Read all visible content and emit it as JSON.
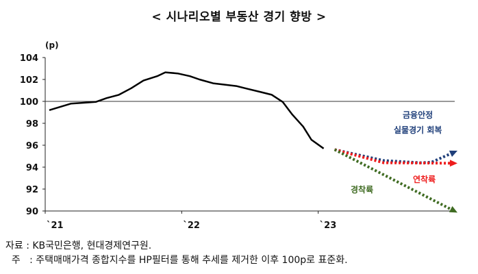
{
  "chart_data": {
    "type": "line",
    "title": "< 시나리오별 부동산 경기 향방 >",
    "ylabel": "(p)",
    "ylim": [
      90,
      104
    ],
    "yticks": [
      "104",
      "102",
      "100",
      "98",
      "96",
      "94",
      "92",
      "90"
    ],
    "xlim": [
      2021.0,
      2024.0
    ],
    "xticks": [
      {
        "label": "`21",
        "x": 2021.0
      },
      {
        "label": "`22",
        "x": 2022.0
      },
      {
        "label": "`23",
        "x": 2023.0
      }
    ],
    "reference_line": 100,
    "grid": false,
    "actual": {
      "x": [
        2021.03,
        2021.19,
        2021.31,
        2021.37,
        2021.45,
        2021.54,
        2021.63,
        2021.72,
        2021.82,
        2021.88,
        2021.97,
        2022.06,
        2022.13,
        2022.23,
        2022.3,
        2022.4,
        2022.48,
        2022.58,
        2022.66,
        2022.74,
        2022.81,
        2022.89,
        2022.95,
        2023.04
      ],
      "values": [
        99.2,
        99.8,
        99.9,
        99.95,
        100.3,
        100.6,
        101.2,
        101.9,
        102.3,
        102.65,
        102.55,
        102.3,
        102.0,
        101.65,
        101.55,
        101.4,
        101.15,
        100.85,
        100.6,
        99.95,
        98.8,
        97.7,
        96.5,
        95.7
      ]
    },
    "scenarios": [
      {
        "name": "금융안정 실물경기 회복",
        "color": "#1f3f7a",
        "x": [
          2023.12,
          2023.48,
          2023.75,
          2023.83,
          2024.02
        ],
        "values": [
          95.6,
          94.6,
          94.4,
          94.45,
          95.5
        ]
      },
      {
        "name": "연착륙",
        "color": "#ee1c1c",
        "x": [
          2023.12,
          2023.48,
          2024.02
        ],
        "values": [
          95.6,
          94.4,
          94.35
        ]
      },
      {
        "name": "경착륙",
        "color": "#3f6b22",
        "x": [
          2023.12,
          2024.02
        ],
        "values": [
          95.6,
          89.85
        ]
      }
    ],
    "annotations": {
      "recovery_line1": "금융안정",
      "recovery_line2": "실물경기 회복",
      "soft_landing": "연착륙",
      "hard_landing": "경착륙"
    }
  },
  "notes": {
    "source": "자료 : KB국민은행, 현대경제연구원.",
    "comment": "  주   : 주택매매가격 종합지수를 HP필터를 통해 추세를 제거한 이후 100p로 표준화."
  }
}
